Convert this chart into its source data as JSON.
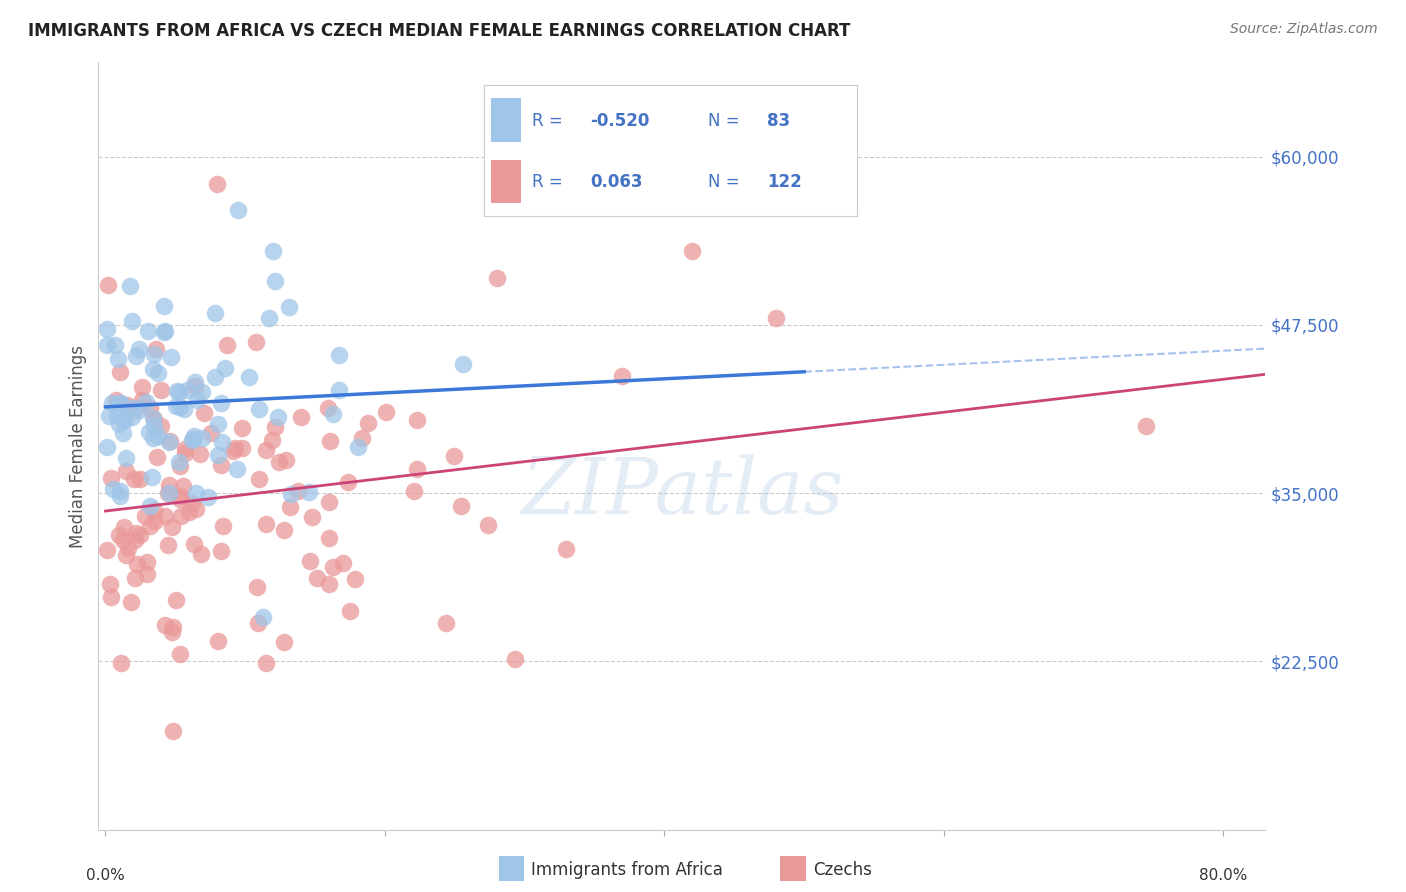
{
  "title": "IMMIGRANTS FROM AFRICA VS CZECH MEDIAN FEMALE EARNINGS CORRELATION CHART",
  "source": "Source: ZipAtlas.com",
  "ylabel": "Median Female Earnings",
  "ytick_labels": [
    "$22,500",
    "$35,000",
    "$47,500",
    "$60,000"
  ],
  "ytick_values": [
    22500,
    35000,
    47500,
    60000
  ],
  "ymin": 10000,
  "ymax": 65000,
  "xmin": 0.0,
  "xmax": 0.8,
  "color_blue": "#9fc5e8",
  "color_pink": "#ea9999",
  "color_blue_line": "#3c78d8",
  "color_pink_line": "#cc4477",
  "color_blue_text": "#4a86c8",
  "color_axis_label": "#4472c4",
  "watermark": "ZIPatlas",
  "legend_text_color": "#4472c4"
}
